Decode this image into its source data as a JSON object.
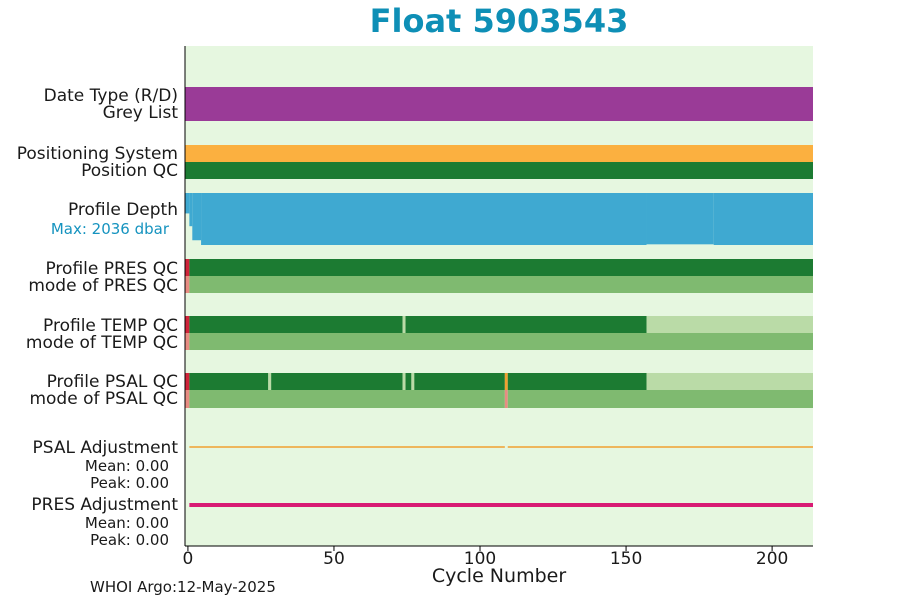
{
  "title": "Float 5903543",
  "footer": "WHOI Argo:12-May-2025",
  "labels": {
    "date_type": "Date Type (R/D)",
    "grey_list": "Grey List",
    "positioning_system": "Positioning System",
    "position_qc": "Position QC",
    "profile_depth": "Profile Depth",
    "max_depth": "Max: 2036 dbar",
    "pres_qc": "Profile PRES QC",
    "mode_pres": "mode of PRES QC",
    "temp_qc": "Profile TEMP QC",
    "mode_temp": "mode of TEMP QC",
    "psal_qc": "Profile PSAL QC",
    "mode_psal": "mode of PSAL QC",
    "psal_adj": "PSAL Adjustment",
    "psal_mean": "Mean: 0.00",
    "psal_peak": "Peak: 0.00",
    "pres_adj": "PRES Adjustment",
    "pres_mean": "Mean: 0.00",
    "pres_peak": "Peak: 0.00"
  },
  "colors": {
    "background": "#e6f7e0",
    "date_type": "#9a3b97",
    "positioning": "#fbb040",
    "qc_good": "#1c7b32",
    "qc_mode": "#7fba70",
    "qc_light": "#badba7",
    "qc_bad": "#d0243a",
    "mode_bad": "#e88c82",
    "depth": "#3fa9d1",
    "psal_adj": "#f0a030",
    "pres_adj": "#d81b74",
    "title": "#0e8fb6"
  },
  "chart_data": {
    "type": "table",
    "title": "Float 5903543",
    "xlabel": "Cycle Number",
    "xlim": [
      -1,
      214
    ],
    "xticks": [
      0,
      50,
      100,
      150,
      200
    ],
    "max_depth_dbar": 2036,
    "rows": [
      {
        "name": "Date Type (R/D)",
        "segments": [
          {
            "from": -1,
            "to": 214,
            "color": "date_type"
          }
        ]
      },
      {
        "name": "Positioning System",
        "segments": [
          {
            "from": -1,
            "to": 214,
            "color": "positioning"
          }
        ]
      },
      {
        "name": "Position QC",
        "segments": [
          {
            "from": -1,
            "to": 214,
            "color": "qc_good"
          }
        ]
      },
      {
        "name": "Profile PRES QC",
        "segments": [
          {
            "from": -1,
            "to": 0.5,
            "color": "qc_bad"
          },
          {
            "from": 0.5,
            "to": 214,
            "color": "qc_good"
          }
        ]
      },
      {
        "name": "mode of PRES QC",
        "segments": [
          {
            "from": -1,
            "to": 0.5,
            "color": "mode_bad"
          },
          {
            "from": 0.5,
            "to": 214,
            "color": "qc_mode"
          }
        ]
      },
      {
        "name": "Profile TEMP QC",
        "segments": [
          {
            "from": -1,
            "to": 0.5,
            "color": "qc_bad"
          },
          {
            "from": 0.5,
            "to": 73.5,
            "color": "qc_good"
          },
          {
            "from": 73.5,
            "to": 74.5,
            "color": "qc_light"
          },
          {
            "from": 74.5,
            "to": 157,
            "color": "qc_good"
          },
          {
            "from": 157,
            "to": 214,
            "color": "qc_light"
          }
        ]
      },
      {
        "name": "mode of TEMP QC",
        "segments": [
          {
            "from": -1,
            "to": 0.5,
            "color": "mode_bad"
          },
          {
            "from": 0.5,
            "to": 214,
            "color": "qc_mode"
          }
        ]
      },
      {
        "name": "Profile PSAL QC",
        "segments": [
          {
            "from": -1,
            "to": 0.5,
            "color": "qc_bad"
          },
          {
            "from": 0.5,
            "to": 27.5,
            "color": "qc_good"
          },
          {
            "from": 27.5,
            "to": 28.5,
            "color": "qc_light"
          },
          {
            "from": 28.5,
            "to": 73.5,
            "color": "qc_good"
          },
          {
            "from": 73.5,
            "to": 74.5,
            "color": "qc_light"
          },
          {
            "from": 74.5,
            "to": 76.5,
            "color": "qc_good"
          },
          {
            "from": 76.5,
            "to": 77.5,
            "color": "qc_light"
          },
          {
            "from": 77.5,
            "to": 108.5,
            "color": "qc_good"
          },
          {
            "from": 108.5,
            "to": 109.5,
            "color": "psal_adj"
          },
          {
            "from": 109.5,
            "to": 157,
            "color": "qc_good"
          },
          {
            "from": 157,
            "to": 214,
            "color": "qc_light"
          }
        ]
      },
      {
        "name": "mode of PSAL QC",
        "segments": [
          {
            "from": -1,
            "to": 0.5,
            "color": "mode_bad"
          },
          {
            "from": 0.5,
            "to": 108.5,
            "color": "qc_mode"
          },
          {
            "from": 108.5,
            "to": 109.5,
            "color": "mode_bad"
          },
          {
            "from": 109.5,
            "to": 214,
            "color": "qc_mode"
          }
        ]
      }
    ],
    "profile_depth": [
      {
        "from": -1,
        "to": 0.5,
        "depth": 800
      },
      {
        "from": 0.5,
        "to": 1.5,
        "depth": 1300
      },
      {
        "from": 1.5,
        "to": 4.5,
        "depth": 1850
      },
      {
        "from": 4.5,
        "to": 157,
        "depth": 2036
      },
      {
        "from": 157,
        "to": 180,
        "depth": 2010
      },
      {
        "from": 180,
        "to": 214,
        "depth": 2036
      }
    ],
    "psal_adjustment": {
      "mean": 0.0,
      "peak": 0.0,
      "gap": [
        108.5,
        109.5
      ]
    },
    "pres_adjustment": {
      "mean": 0.0,
      "peak": 0.0,
      "start": 0.5
    }
  }
}
